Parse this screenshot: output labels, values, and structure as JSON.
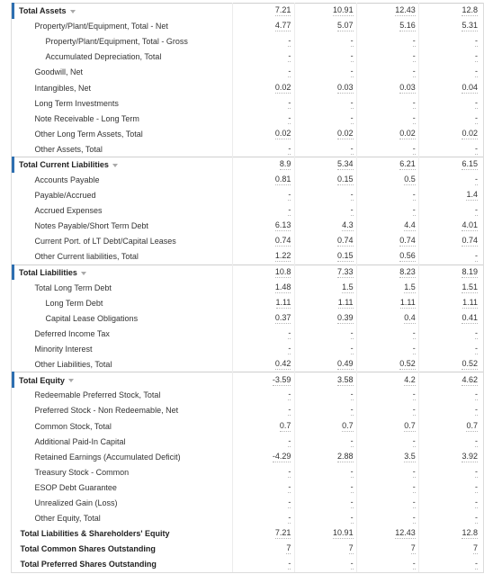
{
  "balance_sheet": {
    "rows": [
      {
        "label": "Total Assets",
        "type": "section",
        "values": [
          "7.21",
          "10.91",
          "12.43",
          "12.8"
        ]
      },
      {
        "label": "Property/Plant/Equipment, Total - Net",
        "type": "item",
        "values": [
          "4.77",
          "5.07",
          "5.16",
          "5.31"
        ]
      },
      {
        "label": "Property/Plant/Equipment, Total - Gross",
        "type": "sub",
        "values": [
          "-",
          "-",
          "-",
          "-"
        ]
      },
      {
        "label": "Accumulated Depreciation, Total",
        "type": "sub",
        "values": [
          "-",
          "-",
          "-",
          "-"
        ]
      },
      {
        "label": "Goodwill, Net",
        "type": "item",
        "values": [
          "-",
          "-",
          "-",
          "-"
        ]
      },
      {
        "label": "Intangibles, Net",
        "type": "item",
        "values": [
          "0.02",
          "0.03",
          "0.03",
          "0.04"
        ]
      },
      {
        "label": "Long Term Investments",
        "type": "item",
        "values": [
          "-",
          "-",
          "-",
          "-"
        ]
      },
      {
        "label": "Note Receivable - Long Term",
        "type": "item",
        "values": [
          "-",
          "-",
          "-",
          "-"
        ]
      },
      {
        "label": "Other Long Term Assets, Total",
        "type": "item",
        "values": [
          "0.02",
          "0.02",
          "0.02",
          "0.02"
        ]
      },
      {
        "label": "Other Assets, Total",
        "type": "item",
        "values": [
          "-",
          "-",
          "-",
          "-"
        ]
      },
      {
        "label": "Total Current Liabilities",
        "type": "section",
        "values": [
          "8.9",
          "5.34",
          "6.21",
          "6.15"
        ]
      },
      {
        "label": "Accounts Payable",
        "type": "item",
        "values": [
          "0.81",
          "0.15",
          "0.5",
          "-"
        ]
      },
      {
        "label": "Payable/Accrued",
        "type": "item",
        "values": [
          "-",
          "-",
          "-",
          "1.4"
        ]
      },
      {
        "label": "Accrued Expenses",
        "type": "item",
        "values": [
          "-",
          "-",
          "-",
          "-"
        ]
      },
      {
        "label": "Notes Payable/Short Term Debt",
        "type": "item",
        "values": [
          "6.13",
          "4.3",
          "4.4",
          "4.01"
        ]
      },
      {
        "label": "Current Port. of LT Debt/Capital Leases",
        "type": "item",
        "values": [
          "0.74",
          "0.74",
          "0.74",
          "0.74"
        ]
      },
      {
        "label": "Other Current liabilities, Total",
        "type": "item",
        "values": [
          "1.22",
          "0.15",
          "0.56",
          "-"
        ]
      },
      {
        "label": "Total Liabilities",
        "type": "section",
        "values": [
          "10.8",
          "7.33",
          "8.23",
          "8.19"
        ]
      },
      {
        "label": "Total Long Term Debt",
        "type": "item",
        "values": [
          "1.48",
          "1.5",
          "1.5",
          "1.51"
        ]
      },
      {
        "label": "Long Term Debt",
        "type": "sub",
        "values": [
          "1.11",
          "1.11",
          "1.11",
          "1.11"
        ]
      },
      {
        "label": "Capital Lease Obligations",
        "type": "sub",
        "values": [
          "0.37",
          "0.39",
          "0.4",
          "0.41"
        ]
      },
      {
        "label": "Deferred Income Tax",
        "type": "item",
        "values": [
          "-",
          "-",
          "-",
          "-"
        ]
      },
      {
        "label": "Minority Interest",
        "type": "item",
        "values": [
          "-",
          "-",
          "-",
          "-"
        ]
      },
      {
        "label": "Other Liabilities, Total",
        "type": "item",
        "values": [
          "0.42",
          "0.49",
          "0.52",
          "0.52"
        ]
      },
      {
        "label": "Total Equity",
        "type": "section",
        "values": [
          "-3.59",
          "3.58",
          "4.2",
          "4.62"
        ]
      },
      {
        "label": "Redeemable Preferred Stock, Total",
        "type": "item",
        "values": [
          "-",
          "-",
          "-",
          "-"
        ]
      },
      {
        "label": "Preferred Stock - Non Redeemable, Net",
        "type": "item",
        "values": [
          "-",
          "-",
          "-",
          "-"
        ]
      },
      {
        "label": "Common Stock, Total",
        "type": "item",
        "values": [
          "0.7",
          "0.7",
          "0.7",
          "0.7"
        ]
      },
      {
        "label": "Additional Paid-In Capital",
        "type": "item",
        "values": [
          "-",
          "-",
          "-",
          "-"
        ]
      },
      {
        "label": "Retained Earnings (Accumulated Deficit)",
        "type": "item",
        "values": [
          "-4.29",
          "2.88",
          "3.5",
          "3.92"
        ]
      },
      {
        "label": "Treasury Stock - Common",
        "type": "item",
        "values": [
          "-",
          "-",
          "-",
          "-"
        ]
      },
      {
        "label": "ESOP Debt Guarantee",
        "type": "item",
        "values": [
          "-",
          "-",
          "-",
          "-"
        ]
      },
      {
        "label": "Unrealized Gain (Loss)",
        "type": "item",
        "values": [
          "-",
          "-",
          "-",
          "-"
        ]
      },
      {
        "label": "Other Equity, Total",
        "type": "item",
        "values": [
          "-",
          "-",
          "-",
          "-"
        ]
      },
      {
        "label": "Total Liabilities & Shareholders' Equity",
        "type": "total",
        "values": [
          "7.21",
          "10.91",
          "12.43",
          "12.8"
        ]
      },
      {
        "label": "Total Common Shares Outstanding",
        "type": "total",
        "values": [
          "7",
          "7",
          "7",
          "7"
        ]
      },
      {
        "label": "Total Preferred Shares Outstanding",
        "type": "total",
        "values": [
          "-",
          "-",
          "-",
          "-"
        ]
      }
    ]
  },
  "colors": {
    "section_accent": "#2e6fb0",
    "text": "#333333",
    "border": "#dcdcdc"
  }
}
